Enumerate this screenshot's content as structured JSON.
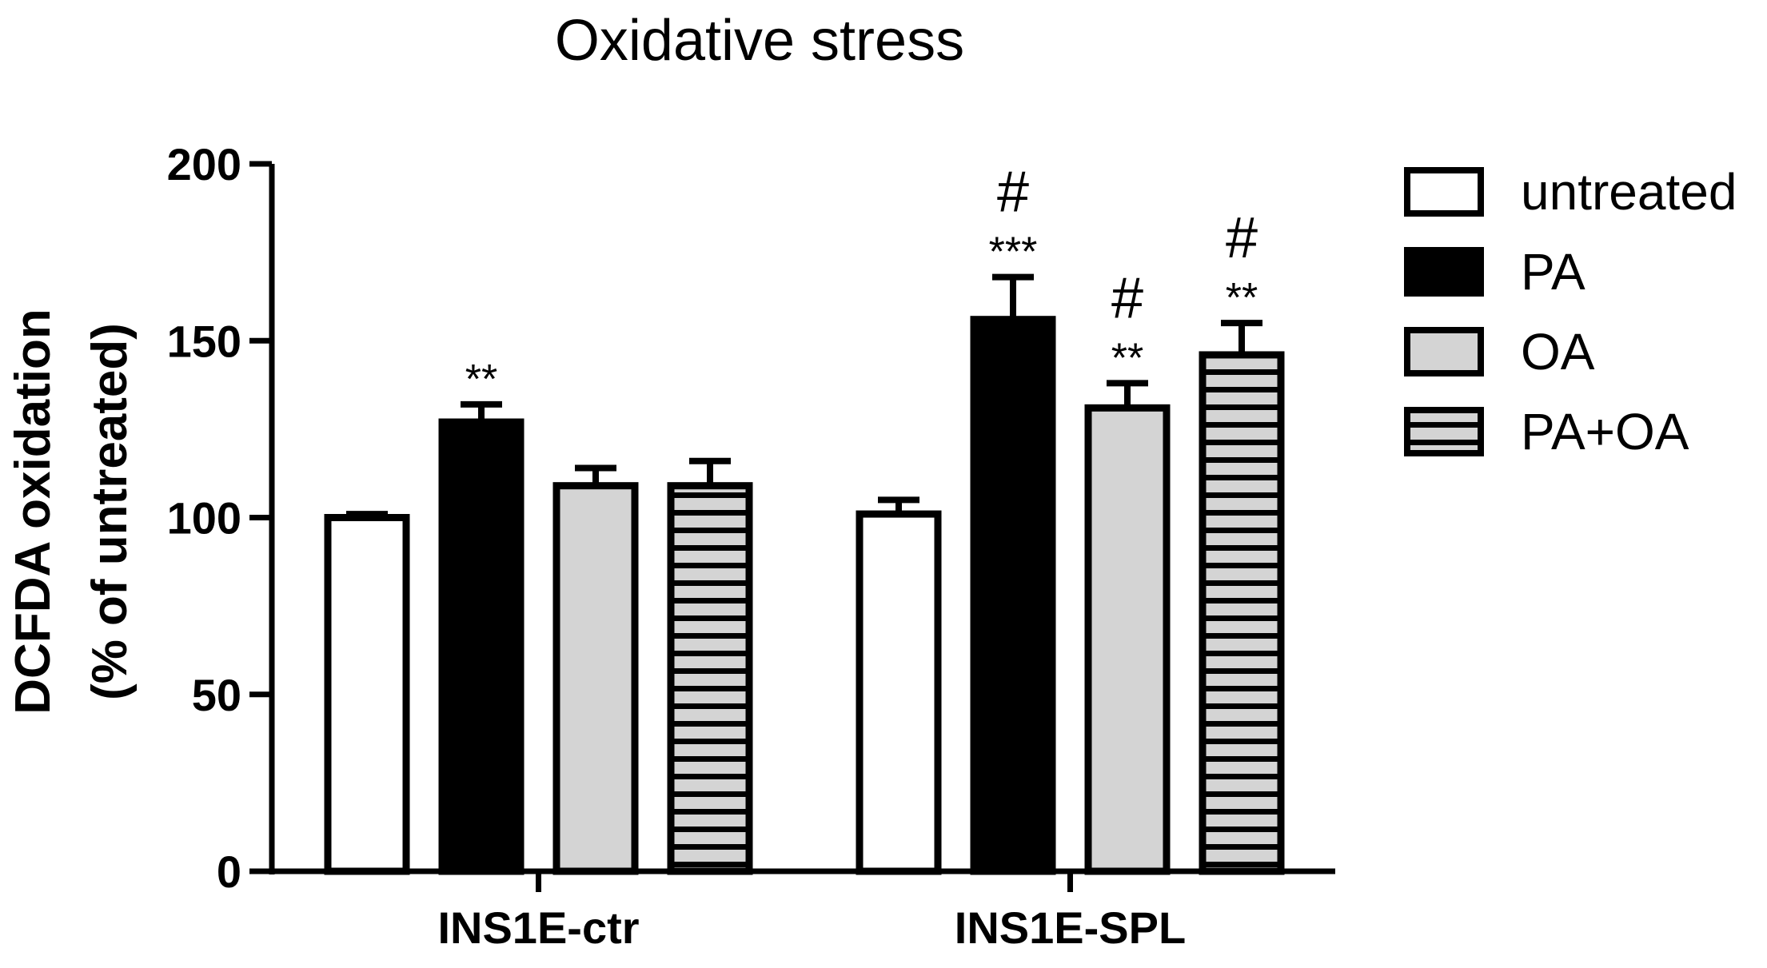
{
  "chart_data": {
    "type": "bar",
    "title": "Oxidative stress",
    "xlabel": "",
    "ylabel_line1": "DCFDA oxidation",
    "ylabel_line2": "(% of untreated)",
    "ylim": [
      0,
      200
    ],
    "yticks": [
      0,
      50,
      100,
      150,
      200
    ],
    "categories": [
      "INS1E-ctr",
      "INS1E-SPL"
    ],
    "legend_position": "right",
    "series": [
      {
        "name": "untreated",
        "fill": "white",
        "values": [
          100,
          101
        ],
        "errors": [
          1,
          4
        ],
        "annotations": [
          {
            "stars": "",
            "hash": ""
          },
          {
            "stars": "",
            "hash": ""
          }
        ]
      },
      {
        "name": "PA",
        "fill": "black",
        "values": [
          127,
          156
        ],
        "errors": [
          5,
          12
        ],
        "annotations": [
          {
            "stars": "**",
            "hash": ""
          },
          {
            "stars": "***",
            "hash": "#"
          }
        ]
      },
      {
        "name": "OA",
        "fill": "lightgray",
        "values": [
          109,
          131
        ],
        "errors": [
          5,
          7
        ],
        "annotations": [
          {
            "stars": "",
            "hash": ""
          },
          {
            "stars": "**",
            "hash": "#"
          }
        ]
      },
      {
        "name": "PA+OA",
        "fill": "striped",
        "values": [
          109,
          146
        ],
        "errors": [
          7,
          9
        ],
        "annotations": [
          {
            "stars": "",
            "hash": ""
          },
          {
            "stars": "**",
            "hash": "#"
          }
        ]
      }
    ],
    "colors": {
      "stroke": "#000000",
      "black": "#000000",
      "lightgray": "#d4d4d4",
      "white": "#ffffff",
      "stripe_bg": "#d4d4d4"
    }
  }
}
